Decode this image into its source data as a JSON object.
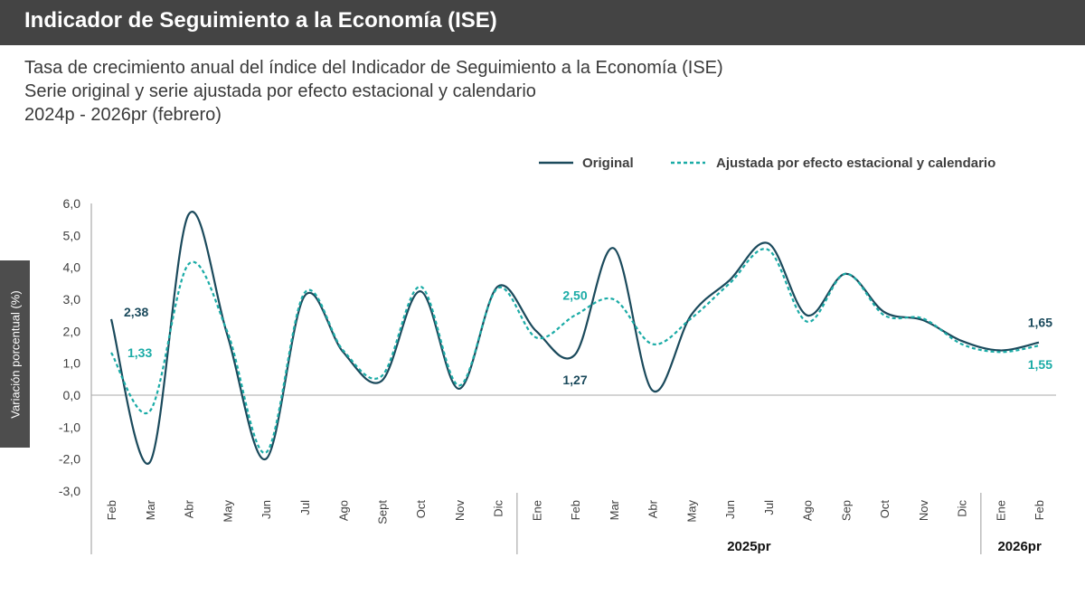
{
  "header": {
    "title": "Indicador de Seguimiento a la Economía (ISE)"
  },
  "subtitles": [
    "Tasa de crecimiento anual del índice del Indicador de Seguimiento a la Economía (ISE)",
    "Serie original y serie ajustada por efecto estacional y calendario",
    "2024p - 2026pr (febrero)"
  ],
  "chart_data": {
    "type": "line",
    "title": "Indicador de Seguimiento a la Economía (ISE)",
    "ylabel": "Variación porcentual (%)",
    "xlabel": "",
    "ylim": [
      -3.0,
      6.0
    ],
    "yticks": [
      6.0,
      5.0,
      4.0,
      3.0,
      2.0,
      1.0,
      0.0,
      -1.0,
      -2.0,
      -3.0
    ],
    "ytick_labels": [
      "6,0",
      "5,0",
      "4,0",
      "3,0",
      "2,0",
      "1,0",
      "0,0",
      "-1,0",
      "-2,0",
      "-3,0"
    ],
    "categories": [
      "Feb",
      "Mar",
      "Abr",
      "May",
      "Jun",
      "Jul",
      "Ago",
      "Sept",
      "Oct",
      "Nov",
      "Dic",
      "Ene",
      "Feb",
      "Mar",
      "Abr",
      "May",
      "Jun",
      "Jul",
      "Ago",
      "Sep",
      "Oct",
      "Nov",
      "Dic",
      "Ene",
      "Feb"
    ],
    "year_groups": [
      {
        "label": "",
        "start": 0,
        "end": 10
      },
      {
        "label": "2025pr",
        "start": 11,
        "end": 22
      },
      {
        "label": "2026pr",
        "start": 23,
        "end": 24
      }
    ],
    "legend_position": "top-right",
    "grid": false,
    "series": [
      {
        "name": "Original",
        "style": "solid",
        "color": "#1b4a5c",
        "values": [
          2.38,
          -2.1,
          5.65,
          1.9,
          -2.0,
          3.1,
          1.35,
          0.45,
          3.25,
          0.2,
          3.4,
          2.0,
          1.27,
          4.6,
          0.15,
          2.5,
          3.6,
          4.75,
          2.5,
          3.8,
          2.6,
          2.35,
          1.7,
          1.4,
          1.65
        ]
      },
      {
        "name": "Ajustada por efecto estacional y calendario",
        "style": "dashed",
        "color": "#1aaba6",
        "values": [
          1.33,
          -0.5,
          4.1,
          2.0,
          -1.8,
          3.2,
          1.4,
          0.6,
          3.4,
          0.3,
          3.35,
          1.8,
          2.5,
          3.0,
          1.6,
          2.4,
          3.5,
          4.55,
          2.3,
          3.8,
          2.5,
          2.4,
          1.6,
          1.35,
          1.55
        ]
      }
    ],
    "data_labels": [
      {
        "series": 0,
        "index": 0,
        "text": "2,38"
      },
      {
        "series": 1,
        "index": 0,
        "text": "1,33"
      },
      {
        "series": 1,
        "index": 12,
        "text": "2,50"
      },
      {
        "series": 0,
        "index": 12,
        "text": "1,27"
      },
      {
        "series": 0,
        "index": 24,
        "text": "1,65"
      },
      {
        "series": 1,
        "index": 24,
        "text": "1,55"
      }
    ]
  }
}
